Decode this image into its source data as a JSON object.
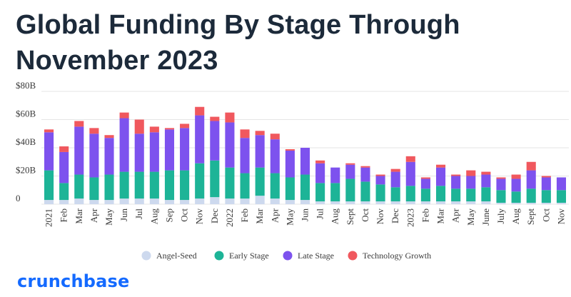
{
  "title": "Global Funding By Stage Through November 2023",
  "brand": "crunchbase",
  "colors": {
    "angel_seed": "#cdd9ee",
    "early_stage": "#1db497",
    "late_stage": "#7d52ee",
    "technology_growth": "#f0585e",
    "grid": "#e6e6e6"
  },
  "chart_data": {
    "type": "bar",
    "stacked": true,
    "title": "Global Funding By Stage Through November 2023",
    "xlabel": "",
    "ylabel": "",
    "ylim": [
      0,
      80
    ],
    "yticks": [
      0,
      20,
      40,
      60,
      80
    ],
    "ytick_labels": [
      "0",
      "$20B",
      "$40B",
      "$60B",
      "$80B"
    ],
    "grid": true,
    "legend_position": "bottom",
    "categories": [
      "2021",
      "Feb",
      "Mar",
      "Apr",
      "May",
      "Jun",
      "Jul",
      "Aug",
      "Sep",
      "Oct",
      "Nov",
      "Dec",
      "2022",
      "Feb",
      "Mar",
      "Apr",
      "May",
      "Jun",
      "Jul",
      "Aug",
      "Sept",
      "Oct",
      "Nov",
      "Dec",
      "2023",
      "Feb",
      "Mar",
      "Apr",
      "May",
      "June",
      "July",
      "Aug",
      "Sept",
      "Oct",
      "Nov"
    ],
    "series": [
      {
        "name": "Angel-Seed",
        "color": "#cdd9ee",
        "values": [
          3,
          3,
          4,
          3,
          3,
          4,
          4,
          4,
          3,
          3,
          4,
          5,
          4,
          4,
          6,
          4,
          3,
          3,
          2,
          2,
          2,
          2,
          2,
          2,
          2,
          2,
          2,
          2,
          2,
          2,
          1,
          1,
          1,
          1,
          1
        ]
      },
      {
        "name": "Early Stage",
        "color": "#1db497",
        "values": [
          21,
          12,
          17,
          16,
          18,
          19,
          19,
          19,
          21,
          21,
          25,
          26,
          22,
          18,
          20,
          18,
          16,
          18,
          13,
          13,
          16,
          14,
          12,
          10,
          11,
          9,
          11,
          9,
          9,
          10,
          9,
          8,
          10,
          9,
          9
        ]
      },
      {
        "name": "Late Stage",
        "color": "#7d52ee",
        "values": [
          27,
          22,
          34,
          31,
          26,
          38,
          27,
          28,
          29,
          30,
          34,
          28,
          32,
          25,
          23,
          24,
          19,
          19,
          14,
          11,
          10,
          10,
          6,
          11,
          17,
          7,
          13,
          9,
          9,
          9,
          8,
          9,
          13,
          9,
          9
        ]
      },
      {
        "name": "Technology Growth",
        "color": "#f0585e",
        "values": [
          2,
          4,
          4,
          4,
          2,
          4,
          10,
          4,
          1,
          3,
          6,
          3,
          7,
          6,
          3,
          4,
          1,
          0,
          2,
          0,
          1,
          1,
          1,
          2,
          4,
          1,
          2,
          1,
          4,
          2,
          1,
          3,
          6,
          1,
          0
        ]
      }
    ]
  }
}
